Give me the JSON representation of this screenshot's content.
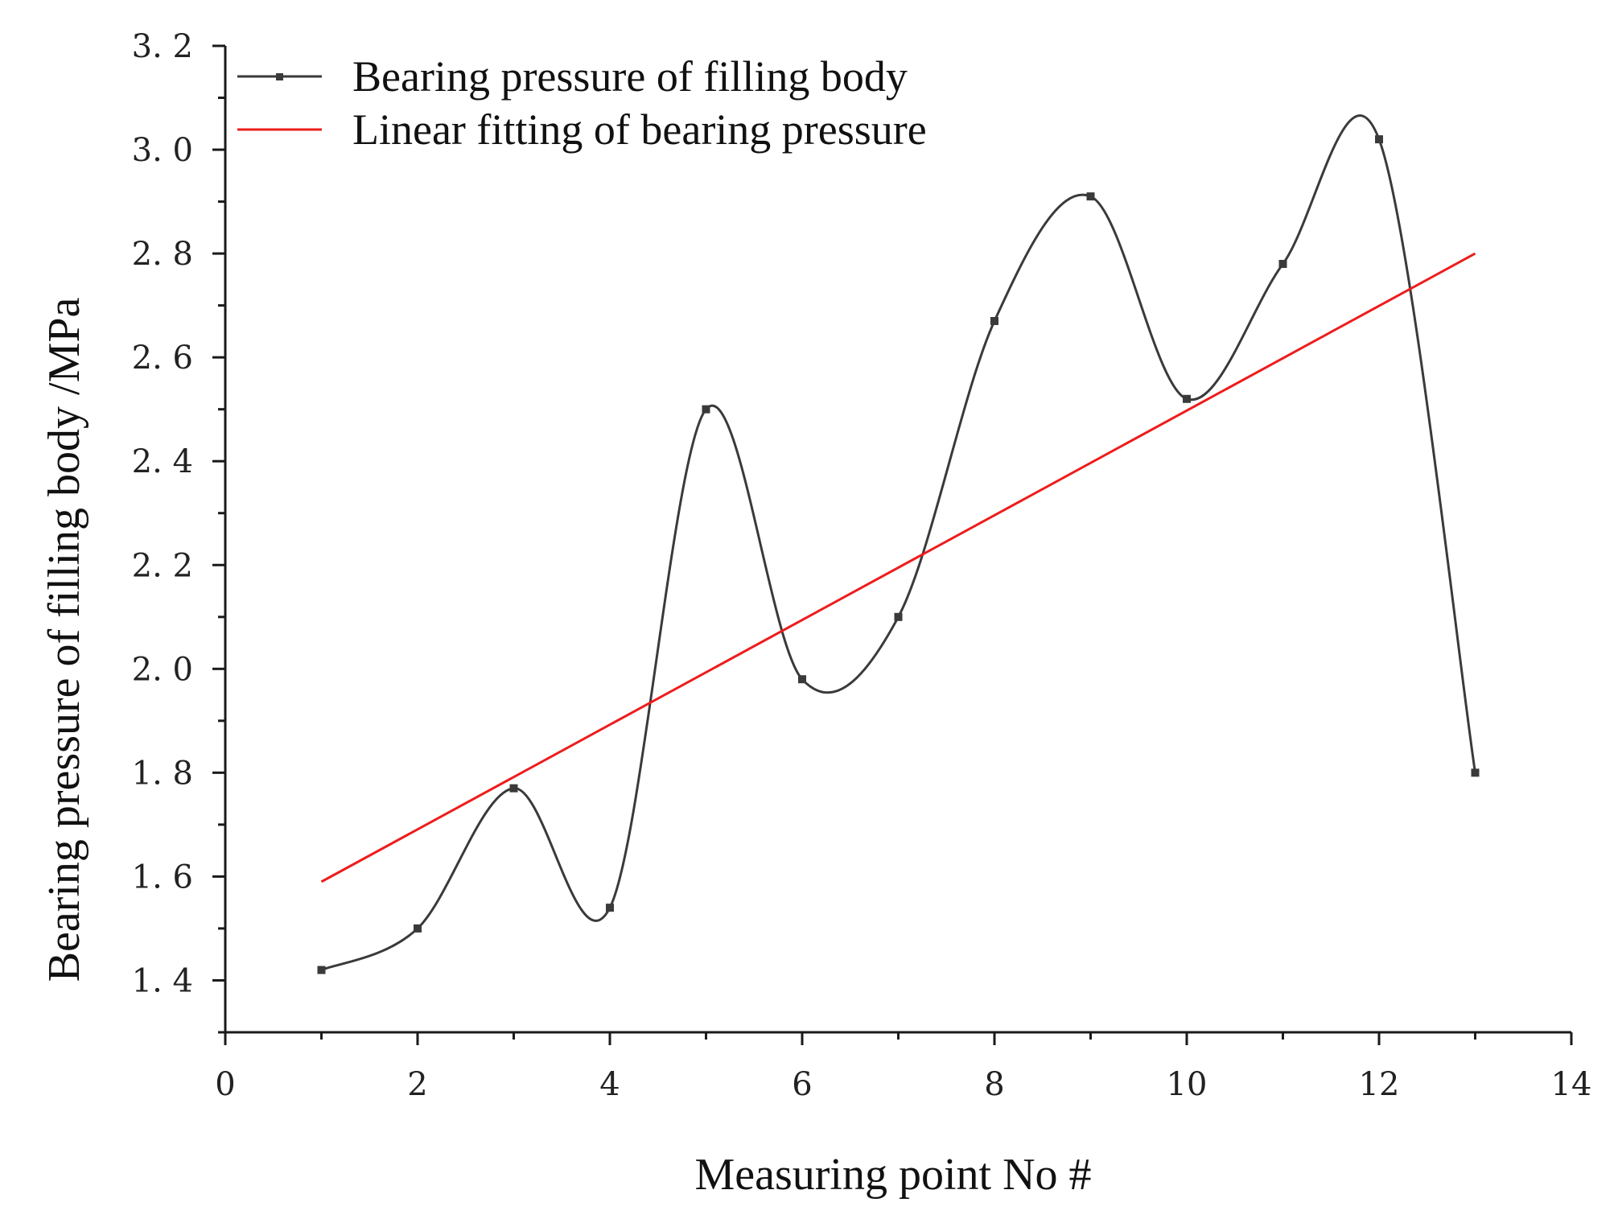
{
  "chart_data": {
    "type": "line",
    "title": "",
    "xlabel": "Measuring point No #",
    "ylabel": "Bearing pressure of filling body /MPa",
    "xlim": [
      0,
      14
    ],
    "ylim": [
      1.3,
      3.2
    ],
    "xticks": [
      "0",
      "2",
      "4",
      "6",
      "8",
      "10",
      "12",
      "14"
    ],
    "yticks": [
      "1. 4",
      "1. 6",
      "1. 8",
      "2. 0",
      "2. 2",
      "2. 4",
      "2. 6",
      "2. 8",
      "3. 0",
      "3. 2"
    ],
    "legend_position": "top-left",
    "grid": false,
    "series": [
      {
        "name": "Bearing pressure of filling body",
        "style": "spline-with-square-markers",
        "color": "#3a3a3a",
        "x": [
          1,
          2,
          3,
          4,
          5,
          6,
          7,
          8,
          9,
          10,
          11,
          12,
          13
        ],
        "y": [
          1.42,
          1.5,
          1.77,
          1.54,
          2.5,
          1.98,
          2.1,
          2.67,
          2.91,
          2.52,
          2.78,
          3.02,
          1.8
        ]
      },
      {
        "name": "Linear fitting of bearing pressure",
        "style": "line",
        "color": "#ee1c1c",
        "x": [
          1,
          13
        ],
        "y": [
          1.59,
          2.8
        ]
      }
    ]
  }
}
